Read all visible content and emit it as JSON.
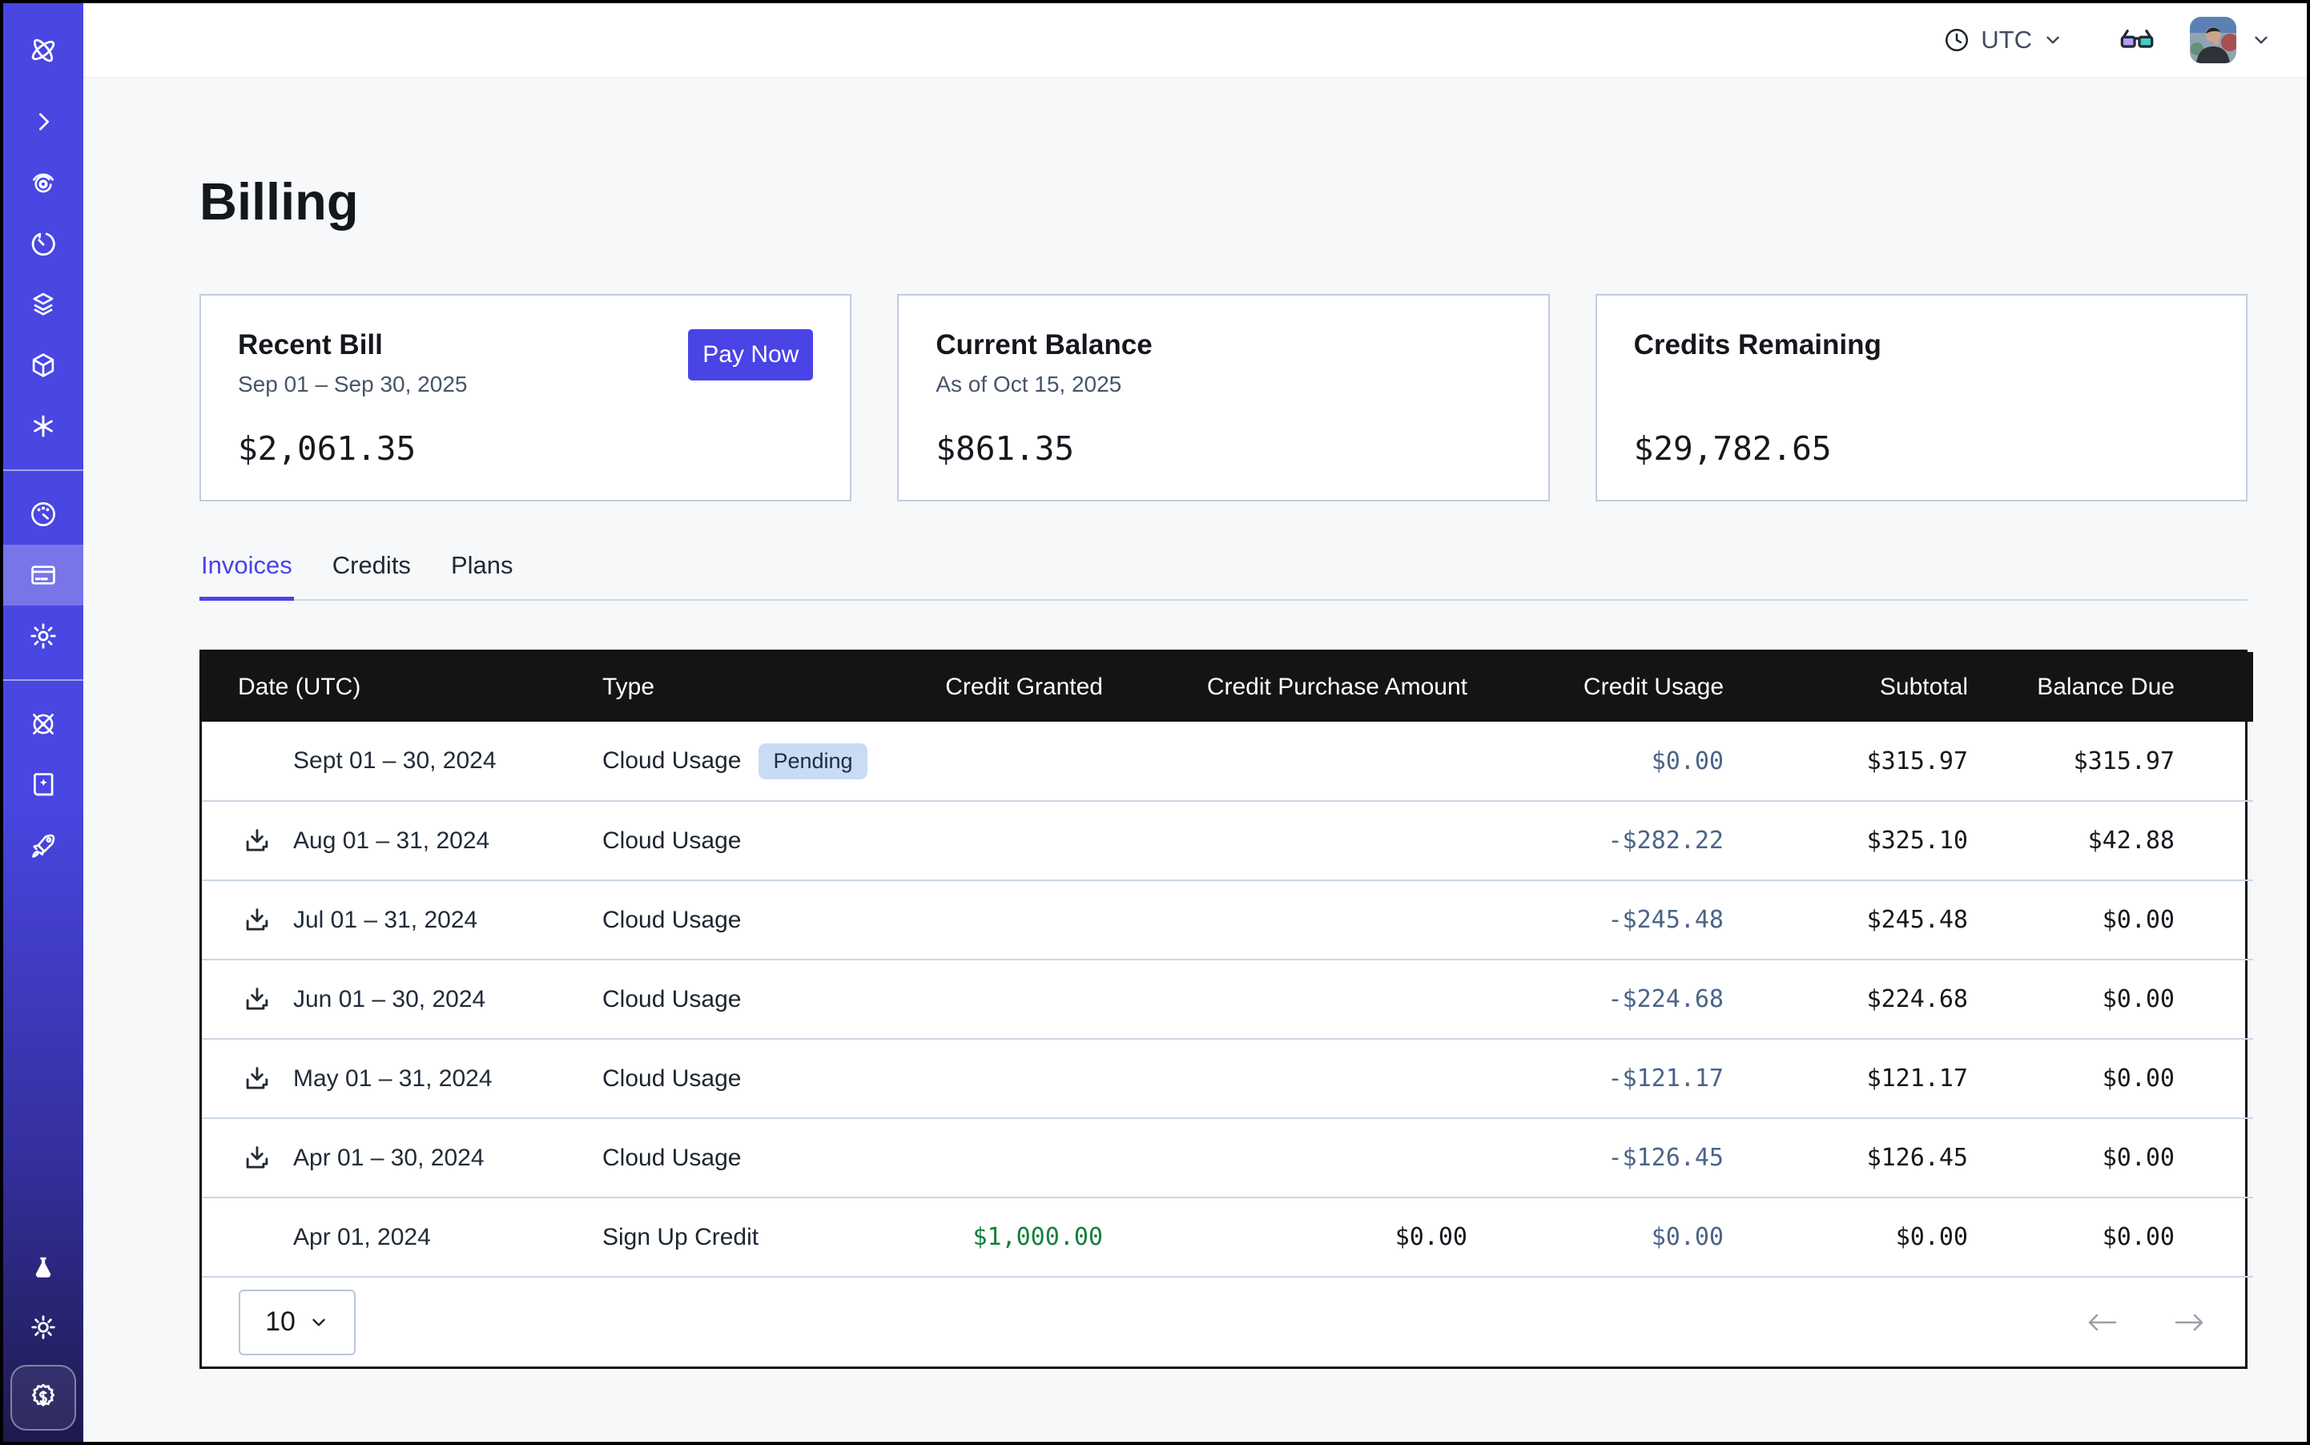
{
  "topbar": {
    "timezone": "UTC",
    "icons": [
      "clock-icon",
      "chevron-down-icon",
      "glasses-icon",
      "avatar",
      "chevron-down-icon"
    ]
  },
  "sidebar": {
    "active_item": "billing",
    "items": [
      {
        "name": "logo"
      },
      {
        "name": "expand-chevron"
      },
      {
        "name": "observe"
      },
      {
        "name": "timer"
      },
      {
        "name": "layers"
      },
      {
        "name": "cube"
      },
      {
        "name": "asterisk"
      },
      {
        "name": "dashboard-gauge"
      },
      {
        "name": "billing-card"
      },
      {
        "name": "settings-gear"
      },
      {
        "name": "helm-wheel"
      },
      {
        "name": "docs-book"
      },
      {
        "name": "rocket"
      },
      {
        "name": "labs-flask"
      },
      {
        "name": "theme-sun"
      },
      {
        "name": "credits-seal"
      }
    ]
  },
  "page": {
    "title": "Billing"
  },
  "cards": [
    {
      "title": "Recent Bill",
      "subtitle": "Sep 01 – Sep 30, 2025",
      "amount": "$2,061.35",
      "action": "Pay Now"
    },
    {
      "title": "Current Balance",
      "subtitle": "As of Oct 15, 2025",
      "amount": "$861.35"
    },
    {
      "title": "Credits Remaining",
      "subtitle": "",
      "amount": "$29,782.65"
    }
  ],
  "tabs": [
    {
      "label": "Invoices",
      "active": true
    },
    {
      "label": "Credits",
      "active": false
    },
    {
      "label": "Plans",
      "active": false
    }
  ],
  "table": {
    "columns": [
      "Date (UTC)",
      "Type",
      "Credit Granted",
      "Credit Purchase Amount",
      "Credit Usage",
      "Subtotal",
      "Balance Due"
    ],
    "rows": [
      {
        "date": "Sept 01 – 30, 2024",
        "download": false,
        "type": "Cloud Usage",
        "badge": "Pending",
        "granted": "",
        "purchase": "",
        "usage": "$0.00",
        "subtotal": "$315.97",
        "balance": "$315.97"
      },
      {
        "date": "Aug 01 – 31, 2024",
        "download": true,
        "type": "Cloud Usage",
        "badge": "",
        "granted": "",
        "purchase": "",
        "usage": "-$282.22",
        "subtotal": "$325.10",
        "balance": "$42.88"
      },
      {
        "date": "Jul 01 – 31, 2024",
        "download": true,
        "type": "Cloud Usage",
        "badge": "",
        "granted": "",
        "purchase": "",
        "usage": "-$245.48",
        "subtotal": "$245.48",
        "balance": "$0.00"
      },
      {
        "date": "Jun 01 – 30, 2024",
        "download": true,
        "type": "Cloud Usage",
        "badge": "",
        "granted": "",
        "purchase": "",
        "usage": "-$224.68",
        "subtotal": "$224.68",
        "balance": "$0.00"
      },
      {
        "date": "May 01 – 31, 2024",
        "download": true,
        "type": "Cloud Usage",
        "badge": "",
        "granted": "",
        "purchase": "",
        "usage": "-$121.17",
        "subtotal": "$121.17",
        "balance": "$0.00"
      },
      {
        "date": "Apr 01 – 30, 2024",
        "download": true,
        "type": "Cloud Usage",
        "badge": "",
        "granted": "",
        "purchase": "",
        "usage": "-$126.45",
        "subtotal": "$126.45",
        "balance": "$0.00"
      },
      {
        "date": "Apr 01, 2024",
        "download": false,
        "type": "Sign Up Credit",
        "badge": "",
        "granted": "$1,000.00",
        "purchase": "$0.00",
        "usage": "$0.00",
        "subtotal": "$0.00",
        "balance": "$0.00"
      }
    ],
    "page_size": "10"
  },
  "colors": {
    "accent": "#4a43e6",
    "sidebar_top": "#4946e2",
    "sidebar_bottom": "#1d1a4e",
    "table_header_bg": "#141417",
    "credit_usage_text": "#4a6488",
    "credit_granted_green": "#15803b",
    "pending_badge_bg": "#cadbf5",
    "page_bg": "#f7f8fa"
  }
}
